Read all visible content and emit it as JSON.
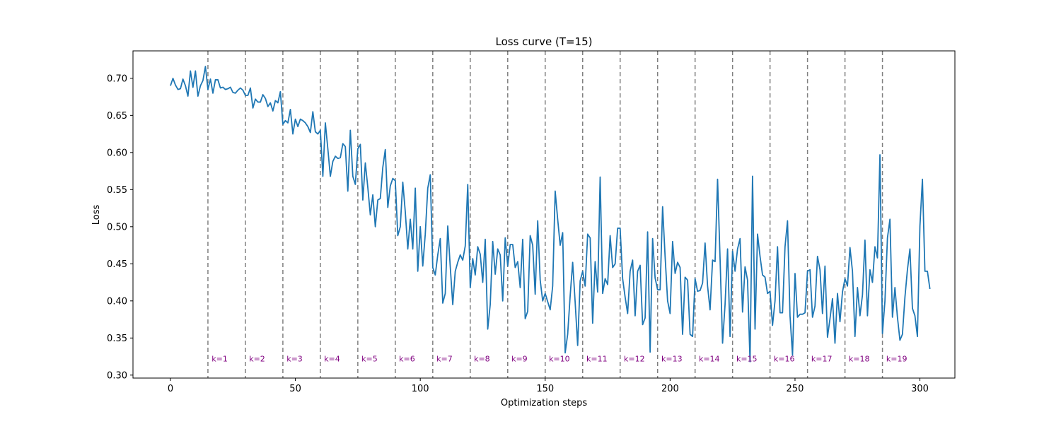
{
  "chart_data": {
    "type": "line",
    "title": "Loss curve (T=15)",
    "xlabel": "Optimization steps",
    "ylabel": "Loss",
    "xlim": [
      -15,
      314
    ],
    "ylim": [
      0.296,
      0.737
    ],
    "xticks": [
      0,
      50,
      100,
      150,
      200,
      250,
      300
    ],
    "xtick_labels": [
      "0",
      "50",
      "100",
      "150",
      "200",
      "250",
      "300"
    ],
    "yticks": [
      0.3,
      0.35,
      0.4,
      0.45,
      0.5,
      0.55,
      0.6,
      0.65,
      0.7
    ],
    "ytick_labels": [
      "0.30",
      "0.35",
      "0.40",
      "0.45",
      "0.50",
      "0.55",
      "0.60",
      "0.65",
      "0.70"
    ],
    "grid": false,
    "line_color": "#1f77b4",
    "vline_color": "#808080",
    "annotation_color": "#800080",
    "vlines": [
      15,
      30,
      45,
      60,
      75,
      90,
      105,
      120,
      135,
      150,
      165,
      180,
      195,
      210,
      225,
      240,
      255,
      270,
      285
    ],
    "annotations": [
      {
        "x": 16.5,
        "text": "k=1"
      },
      {
        "x": 31.5,
        "text": "k=2"
      },
      {
        "x": 46.5,
        "text": "k=3"
      },
      {
        "x": 61.5,
        "text": "k=4"
      },
      {
        "x": 76.5,
        "text": "k=5"
      },
      {
        "x": 91.5,
        "text": "k=6"
      },
      {
        "x": 106.5,
        "text": "k=7"
      },
      {
        "x": 121.5,
        "text": "k=8"
      },
      {
        "x": 136.5,
        "text": "k=9"
      },
      {
        "x": 151.5,
        "text": "k=10"
      },
      {
        "x": 166.5,
        "text": "k=11"
      },
      {
        "x": 181.5,
        "text": "k=12"
      },
      {
        "x": 196.5,
        "text": "k=13"
      },
      {
        "x": 211.5,
        "text": "k=14"
      },
      {
        "x": 226.5,
        "text": "k=15"
      },
      {
        "x": 241.5,
        "text": "k=16"
      },
      {
        "x": 256.5,
        "text": "k=17"
      },
      {
        "x": 271.5,
        "text": "k=18"
      },
      {
        "x": 286.5,
        "text": "k=19"
      }
    ],
    "annotation_y": 0.322,
    "series": [
      {
        "values": [
          0.69,
          0.7,
          0.691,
          0.685,
          0.686,
          0.699,
          0.69,
          0.676,
          0.71,
          0.688,
          0.71,
          0.676,
          0.69,
          0.697,
          0.716,
          0.685,
          0.699,
          0.68,
          0.698,
          0.698,
          0.687,
          0.688,
          0.685,
          0.686,
          0.688,
          0.681,
          0.68,
          0.684,
          0.687,
          0.684,
          0.677,
          0.677,
          0.687,
          0.66,
          0.672,
          0.668,
          0.668,
          0.678,
          0.673,
          0.662,
          0.667,
          0.656,
          0.67,
          0.667,
          0.682,
          0.638,
          0.643,
          0.64,
          0.658,
          0.625,
          0.645,
          0.635,
          0.645,
          0.643,
          0.64,
          0.635,
          0.627,
          0.655,
          0.628,
          0.625,
          0.63,
          0.568,
          0.64,
          0.605,
          0.568,
          0.588,
          0.595,
          0.592,
          0.593,
          0.612,
          0.608,
          0.548,
          0.63,
          0.568,
          0.557,
          0.605,
          0.611,
          0.536,
          0.586,
          0.553,
          0.516,
          0.543,
          0.5,
          0.536,
          0.538,
          0.58,
          0.604,
          0.526,
          0.555,
          0.565,
          0.562,
          0.488,
          0.5,
          0.56,
          0.52,
          0.47,
          0.51,
          0.47,
          0.552,
          0.44,
          0.5,
          0.447,
          0.49,
          0.552,
          0.57,
          0.445,
          0.435,
          0.462,
          0.484,
          0.397,
          0.41,
          0.501,
          0.446,
          0.395,
          0.44,
          0.452,
          0.462,
          0.455,
          0.474,
          0.557,
          0.418,
          0.457,
          0.435,
          0.473,
          0.463,
          0.425,
          0.483,
          0.362,
          0.395,
          0.48,
          0.436,
          0.47,
          0.462,
          0.4,
          0.485,
          0.447,
          0.476,
          0.476,
          0.445,
          0.453,
          0.418,
          0.483,
          0.376,
          0.386,
          0.488,
          0.475,
          0.409,
          0.508,
          0.428,
          0.4,
          0.41,
          0.399,
          0.388,
          0.42,
          0.548,
          0.51,
          0.475,
          0.492,
          0.33,
          0.355,
          0.407,
          0.452,
          0.398,
          0.34,
          0.427,
          0.44,
          0.42,
          0.49,
          0.485,
          0.37,
          0.453,
          0.412,
          0.567,
          0.41,
          0.43,
          0.422,
          0.488,
          0.445,
          0.45,
          0.498,
          0.498,
          0.43,
          0.405,
          0.383,
          0.44,
          0.455,
          0.38,
          0.44,
          0.448,
          0.368,
          0.377,
          0.493,
          0.331,
          0.484,
          0.431,
          0.415,
          0.415,
          0.527,
          0.46,
          0.4,
          0.383,
          0.48,
          0.437,
          0.452,
          0.445,
          0.355,
          0.432,
          0.428,
          0.355,
          0.352,
          0.43,
          0.413,
          0.414,
          0.424,
          0.478,
          0.42,
          0.388,
          0.455,
          0.453,
          0.564,
          0.457,
          0.343,
          0.395,
          0.47,
          0.352,
          0.467,
          0.44,
          0.47,
          0.484,
          0.385,
          0.446,
          0.428,
          0.318,
          0.568,
          0.362,
          0.49,
          0.46,
          0.435,
          0.432,
          0.41,
          0.413,
          0.367,
          0.4,
          0.473,
          0.384,
          0.384,
          0.473,
          0.508,
          0.38,
          0.327,
          0.437,
          0.378,
          0.382,
          0.382,
          0.384,
          0.44,
          0.442,
          0.378,
          0.393,
          0.46,
          0.442,
          0.383,
          0.447,
          0.351,
          0.376,
          0.403,
          0.343,
          0.41,
          0.372,
          0.412,
          0.43,
          0.42,
          0.472,
          0.44,
          0.352,
          0.418,
          0.38,
          0.408,
          0.482,
          0.38,
          0.442,
          0.425,
          0.473,
          0.458,
          0.597,
          0.356,
          0.4,
          0.485,
          0.51,
          0.378,
          0.418,
          0.378,
          0.347,
          0.355,
          0.405,
          0.442,
          0.47,
          0.39,
          0.38,
          0.352,
          0.501,
          0.564,
          0.44,
          0.44,
          0.416
        ]
      }
    ]
  }
}
